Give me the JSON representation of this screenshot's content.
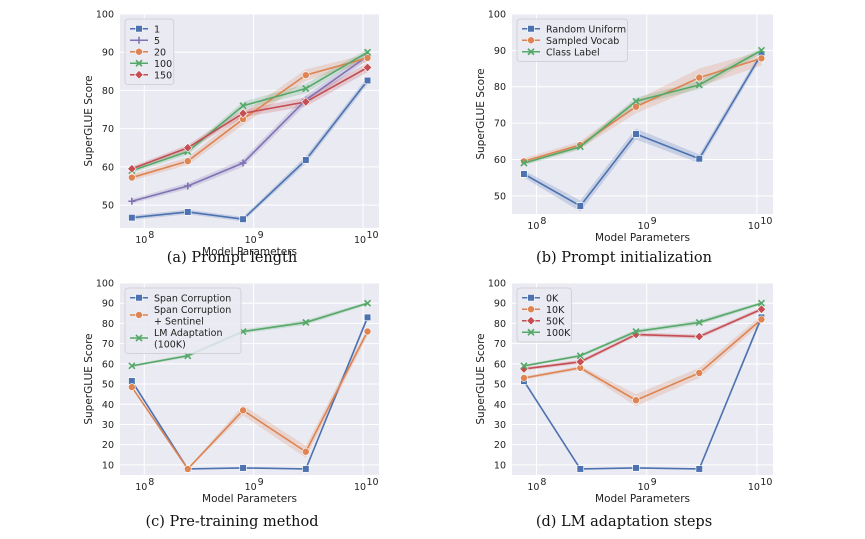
{
  "chart_data": [
    {
      "type": "line",
      "caption": "(a) Prompt length",
      "xlabel": "Model Parameters",
      "ylabel": "SuperGLUE Score",
      "xscale": "log",
      "xlim": [
        60000000,
        14000000000
      ],
      "ylim": [
        44,
        100
      ],
      "yticks": [
        50,
        60,
        70,
        80,
        90,
        100
      ],
      "xticks": [
        {
          "value": 100000000,
          "base": "10",
          "exp": "8"
        },
        {
          "value": 1000000000,
          "base": "10",
          "exp": "9"
        },
        {
          "value": 10000000000,
          "base": "10",
          "exp": "10"
        }
      ],
      "legend_position": "top-left",
      "x": [
        77000000,
        250000000,
        800000000,
        3000000000,
        11000000000
      ],
      "series": [
        {
          "name": "1",
          "color": "#4c72b0",
          "marker": "square",
          "values": [
            46.7,
            48.2,
            46.3,
            61.8,
            82.6
          ],
          "band": [
            0.6,
            0.6,
            0.6,
            1.0,
            1.0
          ]
        },
        {
          "name": "5",
          "color": "#8172b3",
          "marker": "plus",
          "values": [
            51.0,
            55.0,
            61.0,
            77.5,
            89.0
          ],
          "band": [
            0.6,
            0.8,
            1.0,
            1.2,
            1.0
          ]
        },
        {
          "name": "20",
          "color": "#dd8452",
          "marker": "circle",
          "values": [
            57.2,
            61.5,
            72.5,
            84.0,
            88.5
          ],
          "band": [
            0.8,
            1.0,
            1.5,
            1.5,
            1.0
          ]
        },
        {
          "name": "100",
          "color": "#55a868",
          "marker": "x",
          "values": [
            59.0,
            64.0,
            76.0,
            80.5,
            90.0
          ],
          "band": [
            0.6,
            0.8,
            1.0,
            1.2,
            0.8
          ]
        },
        {
          "name": "150",
          "color": "#c44e52",
          "marker": "diamond",
          "values": [
            59.5,
            65.0,
            74.0,
            77.0,
            86.0
          ],
          "band": [
            0.6,
            0.8,
            1.0,
            1.2,
            1.2
          ]
        }
      ]
    },
    {
      "type": "line",
      "caption": "(b) Prompt initialization",
      "xlabel": "Model Parameters",
      "ylabel": "SuperGLUE Score",
      "xscale": "log",
      "xlim": [
        60000000,
        14000000000
      ],
      "ylim": [
        45,
        100
      ],
      "yticks": [
        50,
        60,
        70,
        80,
        90,
        100
      ],
      "xticks": [
        {
          "value": 100000000,
          "base": "10",
          "exp": "8"
        },
        {
          "value": 1000000000,
          "base": "10",
          "exp": "9"
        },
        {
          "value": 10000000000,
          "base": "10",
          "exp": "10"
        }
      ],
      "legend_position": "top-left",
      "x": [
        77000000,
        250000000,
        800000000,
        3000000000,
        11000000000
      ],
      "series": [
        {
          "name": "Random Uniform",
          "color": "#4c72b0",
          "marker": "square",
          "values": [
            56.0,
            47.2,
            67.0,
            60.2,
            89.0
          ],
          "band": [
            1.0,
            1.5,
            1.5,
            1.2,
            1.0
          ]
        },
        {
          "name": "Sampled Vocab",
          "color": "#dd8452",
          "marker": "circle",
          "values": [
            59.5,
            64.0,
            74.5,
            82.5,
            87.8
          ],
          "band": [
            0.8,
            1.0,
            1.8,
            2.5,
            2.0
          ]
        },
        {
          "name": "Class Label",
          "color": "#55a868",
          "marker": "x",
          "values": [
            59.0,
            63.5,
            76.0,
            80.5,
            90.0
          ],
          "band": [
            0.6,
            0.8,
            1.0,
            1.2,
            0.8
          ]
        }
      ]
    },
    {
      "type": "line",
      "caption": "(c) Pre-training method",
      "xlabel": "Model Parameters",
      "ylabel": "SuperGLUE Score",
      "xscale": "log",
      "xlim": [
        60000000,
        14000000000
      ],
      "ylim": [
        5,
        100
      ],
      "yticks": [
        10,
        20,
        30,
        40,
        50,
        60,
        70,
        80,
        90,
        100
      ],
      "xticks": [
        {
          "value": 100000000,
          "base": "10",
          "exp": "8"
        },
        {
          "value": 1000000000,
          "base": "10",
          "exp": "9"
        },
        {
          "value": 10000000000,
          "base": "10",
          "exp": "10"
        }
      ],
      "legend_position": "top-left",
      "x": [
        77000000,
        250000000,
        800000000,
        3000000000,
        11000000000
      ],
      "series": [
        {
          "name": "Span Corruption",
          "color": "#4c72b0",
          "marker": "square",
          "values": [
            51.5,
            8.0,
            8.5,
            8.0,
            83.0
          ],
          "band": [
            0.5,
            0.3,
            0.3,
            0.3,
            1.5
          ]
        },
        {
          "name": "Span Corruption + Sentinel",
          "name_lines": [
            "Span Corruption",
            "+ Sentinel"
          ],
          "color": "#dd8452",
          "marker": "circle",
          "values": [
            48.5,
            8.0,
            37.0,
            16.5,
            76.0
          ],
          "band": [
            0.5,
            0.3,
            2.5,
            3.0,
            2.0
          ]
        },
        {
          "name": "LM Adaptation (100K)",
          "name_lines": [
            "LM Adaptation",
            "(100K)"
          ],
          "color": "#55a868",
          "marker": "x",
          "values": [
            59.0,
            64.0,
            76.0,
            80.5,
            90.0
          ],
          "band": [
            0.6,
            0.8,
            1.0,
            1.2,
            0.8
          ]
        }
      ]
    },
    {
      "type": "line",
      "caption": "(d) LM adaptation steps",
      "xlabel": "Model Parameters",
      "ylabel": "SuperGLUE Score",
      "xscale": "log",
      "xlim": [
        60000000,
        14000000000
      ],
      "ylim": [
        5,
        100
      ],
      "yticks": [
        10,
        20,
        30,
        40,
        50,
        60,
        70,
        80,
        90,
        100
      ],
      "xticks": [
        {
          "value": 100000000,
          "base": "10",
          "exp": "8"
        },
        {
          "value": 1000000000,
          "base": "10",
          "exp": "9"
        },
        {
          "value": 10000000000,
          "base": "10",
          "exp": "10"
        }
      ],
      "legend_position": "top-left",
      "x": [
        77000000,
        250000000,
        800000000,
        3000000000,
        11000000000
      ],
      "series": [
        {
          "name": "0K",
          "color": "#4c72b0",
          "marker": "square",
          "values": [
            51.5,
            8.0,
            8.5,
            8.0,
            83.0
          ],
          "band": [
            0.5,
            0.3,
            0.3,
            0.3,
            1.5
          ]
        },
        {
          "name": "10K",
          "color": "#dd8452",
          "marker": "circle",
          "values": [
            53.0,
            58.0,
            42.0,
            55.5,
            82.0
          ],
          "band": [
            0.8,
            1.0,
            3.0,
            2.5,
            2.0
          ]
        },
        {
          "name": "50K",
          "color": "#c44e52",
          "marker": "diamond",
          "values": [
            57.5,
            61.0,
            74.5,
            73.5,
            87.0
          ],
          "band": [
            0.8,
            1.0,
            1.0,
            1.0,
            1.0
          ]
        },
        {
          "name": "100K",
          "color": "#55a868",
          "marker": "x",
          "values": [
            59.0,
            64.0,
            76.0,
            80.5,
            90.0
          ],
          "band": [
            0.6,
            0.8,
            1.0,
            1.2,
            0.8
          ]
        }
      ]
    }
  ]
}
